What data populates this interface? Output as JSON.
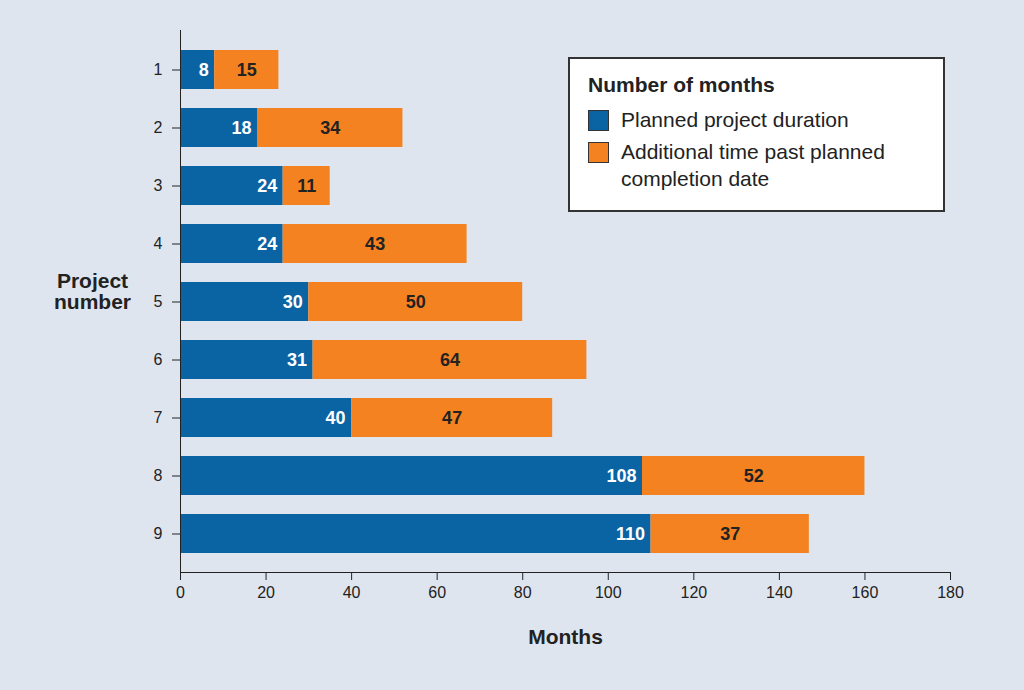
{
  "chart_data": {
    "type": "bar",
    "orientation": "horizontal",
    "stacked": true,
    "data_labels": true,
    "grid": false,
    "ylabel": "Project number",
    "xlabel": "Months",
    "legend": "upper right",
    "legend_title": "Number of months",
    "categories": [
      "1",
      "2",
      "3",
      "4",
      "5",
      "6",
      "7",
      "8",
      "9"
    ],
    "series": [
      {
        "name": "Planned project duration",
        "color": "#0a64a4",
        "values": [
          8,
          18,
          24,
          24,
          30,
          31,
          40,
          108,
          110
        ]
      },
      {
        "name": "Additional time past planned completion date",
        "color": "#f58220",
        "values": [
          15,
          34,
          11,
          43,
          50,
          64,
          47,
          52,
          37
        ]
      }
    ],
    "xlim": [
      0,
      180
    ],
    "xticks": [
      0,
      20,
      40,
      60,
      80,
      100,
      120,
      140,
      160,
      180
    ]
  }
}
